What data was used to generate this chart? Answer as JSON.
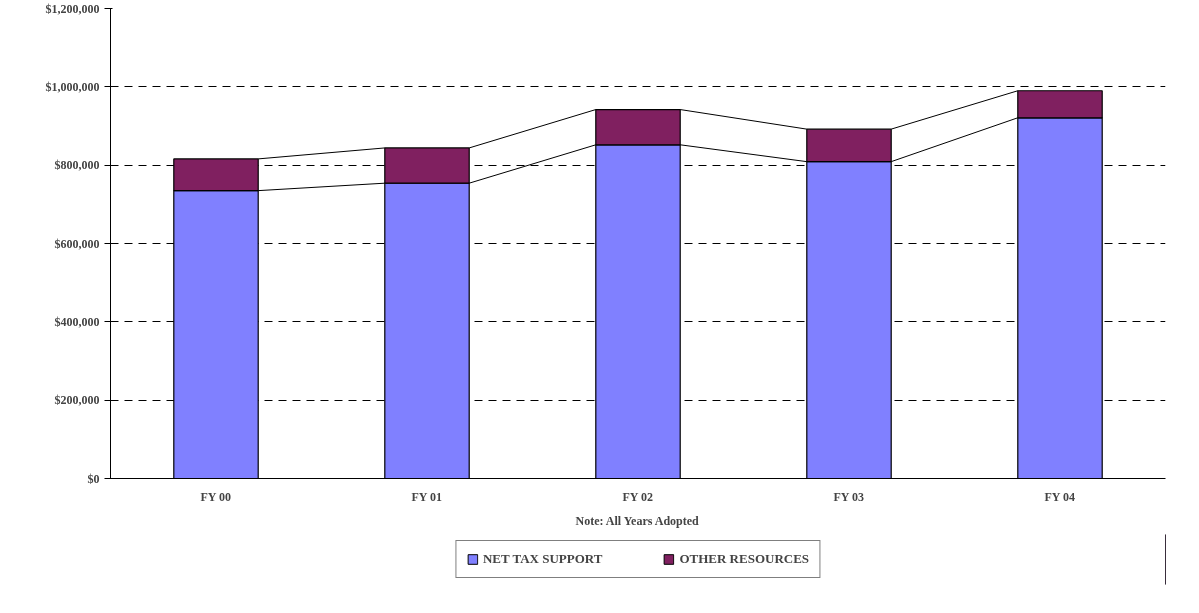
{
  "chart_data": {
    "type": "bar",
    "stacked": true,
    "categories": [
      "FY 00",
      "FY 01",
      "FY 02",
      "FY 03",
      "FY 04"
    ],
    "series": [
      {
        "name": "NET TAX SUPPORT",
        "color": "#8080ff",
        "values": [
          735000,
          754000,
          852000,
          809000,
          921000
        ]
      },
      {
        "name": "OTHER RESOURCES",
        "color": "#802060",
        "values": [
          81000,
          90000,
          90000,
          83000,
          69000
        ]
      }
    ],
    "ylim": [
      0,
      1200000
    ],
    "yticks": [
      {
        "value": 0,
        "label": "$0"
      },
      {
        "value": 200000,
        "label": "$200,000"
      },
      {
        "value": 400000,
        "label": "$400,000"
      },
      {
        "value": 600000,
        "label": "$600,000"
      },
      {
        "value": 800000,
        "label": "$800,000"
      },
      {
        "value": 1000000,
        "label": "$1,000,000"
      },
      {
        "value": 1200000,
        "label": "$1,200,000"
      }
    ],
    "grid": "y",
    "legend": "bottom",
    "annotations": [
      "Note: All Years Adopted"
    ]
  }
}
